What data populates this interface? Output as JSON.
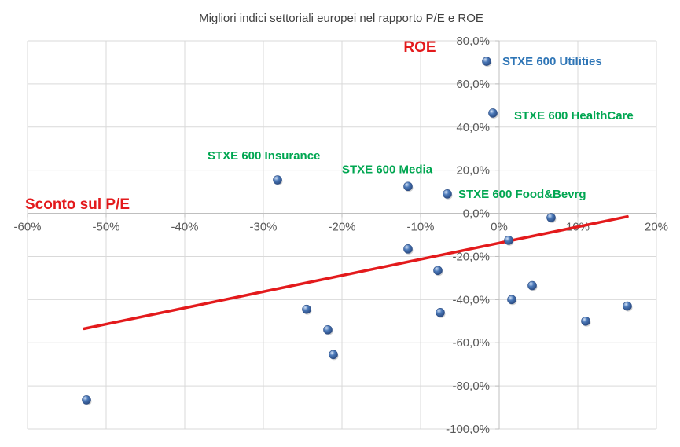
{
  "chart_data": {
    "type": "scatter",
    "title": "Migliori indici settoriali europei nel rapporto P/E e ROE",
    "xlabel": "Sconto sul P/E",
    "ylabel": "ROE",
    "xlim": [
      -0.6,
      0.2
    ],
    "ylim": [
      -1.0,
      0.8
    ],
    "x_ticks": [
      -0.6,
      -0.5,
      -0.4,
      -0.3,
      -0.2,
      -0.1,
      0.0,
      0.1,
      0.2
    ],
    "x_tick_labels": [
      "-60%",
      "-50%",
      "-40%",
      "-30%",
      "-20%",
      "-10%",
      "0%",
      "10%",
      "20%"
    ],
    "y_ticks": [
      0.8,
      0.6,
      0.4,
      0.2,
      0.0,
      -0.2,
      -0.4,
      -0.6,
      -0.8,
      -1.0
    ],
    "y_tick_labels": [
      "80,0%",
      "60,0%",
      "40,0%",
      "20,0%",
      "0,0%",
      "-20,0%",
      "-40,0%",
      "-60,0%",
      "-80,0%",
      "-100,0%"
    ],
    "grid": true,
    "points": [
      {
        "x": -0.525,
        "y": -0.865
      },
      {
        "x": -0.282,
        "y": 0.155
      },
      {
        "x": -0.245,
        "y": -0.445
      },
      {
        "x": -0.218,
        "y": -0.54
      },
      {
        "x": -0.211,
        "y": -0.655
      },
      {
        "x": -0.116,
        "y": 0.125
      },
      {
        "x": -0.116,
        "y": -0.165
      },
      {
        "x": -0.078,
        "y": -0.265
      },
      {
        "x": -0.075,
        "y": -0.46
      },
      {
        "x": -0.066,
        "y": 0.09
      },
      {
        "x": -0.016,
        "y": 0.705
      },
      {
        "x": -0.008,
        "y": 0.465
      },
      {
        "x": 0.012,
        "y": -0.125
      },
      {
        "x": 0.016,
        "y": -0.4
      },
      {
        "x": 0.042,
        "y": -0.335
      },
      {
        "x": 0.066,
        "y": -0.02
      },
      {
        "x": 0.11,
        "y": -0.5
      },
      {
        "x": 0.163,
        "y": -0.43
      }
    ],
    "labels": [
      {
        "text": "STXE 600 Utilities",
        "x": -0.016,
        "y": 0.705,
        "color": "#2e75b6",
        "dx": 20,
        "dy": 5
      },
      {
        "text": "STXE 600 HealthCare",
        "x": -0.008,
        "y": 0.465,
        "color": "#00a651",
        "dx": 27,
        "dy": 8
      },
      {
        "text": "STXE 600 Insurance",
        "x": -0.282,
        "y": 0.155,
        "color": "#00a651",
        "dx": -89,
        "dy": -26
      },
      {
        "text": "STXE 600 Media",
        "x": -0.116,
        "y": 0.125,
        "color": "#00a651",
        "dx": -84,
        "dy": -17
      },
      {
        "text": "STXE 600 Food&Bevrg",
        "x": -0.066,
        "y": 0.09,
        "color": "#00a651",
        "dx": 14,
        "dy": 5
      }
    ],
    "trendline": {
      "x": [
        -0.528,
        0.163
      ],
      "y": [
        -0.535,
        -0.015
      ],
      "color": "#e31a1c"
    },
    "colors": {
      "marker": "#4a78b8",
      "marker_dark": "#2e4f86",
      "gridline": "#d9d9d9",
      "axis_text": "#595959"
    }
  }
}
